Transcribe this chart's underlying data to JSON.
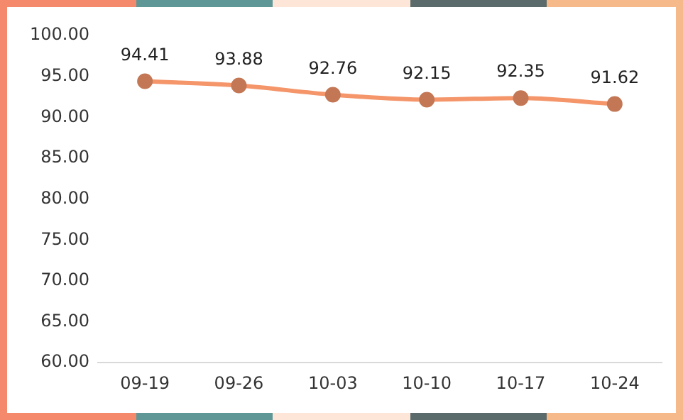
{
  "chart_data": {
    "type": "line",
    "categories": [
      "09-19",
      "09-26",
      "10-03",
      "10-10",
      "10-17",
      "10-24"
    ],
    "series": [
      {
        "color": "#f4956a",
        "values": [
          94.41,
          93.88,
          92.76,
          92.15,
          92.35,
          91.62
        ]
      }
    ],
    "ylim": [
      60,
      100
    ],
    "yticks": [
      {
        "value": 60,
        "label": "60.00"
      },
      {
        "value": 65,
        "label": "65.00"
      },
      {
        "value": 70,
        "label": "70.00"
      },
      {
        "value": 75,
        "label": "75.00"
      },
      {
        "value": 80,
        "label": "80.00"
      },
      {
        "value": 85,
        "label": "85.00"
      },
      {
        "value": 90,
        "label": "90.00"
      },
      {
        "value": 95,
        "label": "95.00"
      },
      {
        "value": 100,
        "label": "100.00"
      }
    ],
    "grid": false,
    "legend": false,
    "marker": "circle",
    "line_style": "solid",
    "data_labels": true
  }
}
